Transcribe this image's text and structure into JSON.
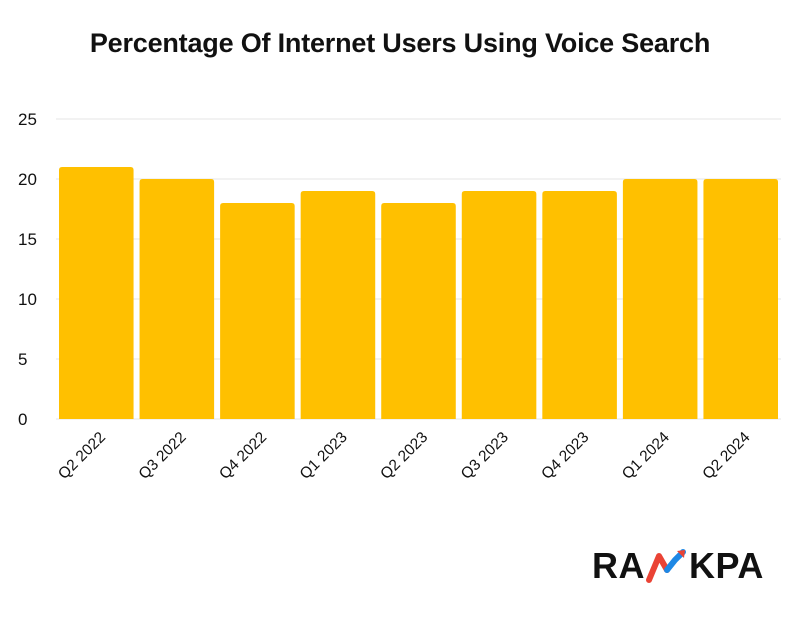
{
  "chart_data": {
    "type": "bar",
    "title": "Percentage Of Internet Users Using Voice Search",
    "xlabel": "",
    "ylabel": "",
    "categories": [
      "Q2 2022",
      "Q3 2022",
      "Q4 2022",
      "Q1 2023",
      "Q2 2023",
      "Q3 2023",
      "Q4 2023",
      "Q1 2024",
      "Q2 2024"
    ],
    "values": [
      21,
      20,
      18,
      19,
      18,
      19,
      19,
      20,
      20
    ],
    "ylim": [
      0,
      25
    ],
    "yticks": [
      0,
      5,
      10,
      15,
      20,
      25
    ],
    "grid": true,
    "legend": "none",
    "bar_color": "#FFC000",
    "grid_color": "#E6E6E6"
  },
  "brand": {
    "logo_text_left": "RA",
    "logo_text_right": "KPA",
    "logo_colors": [
      "#EA4335",
      "#1E88E5",
      "#34A853"
    ]
  }
}
